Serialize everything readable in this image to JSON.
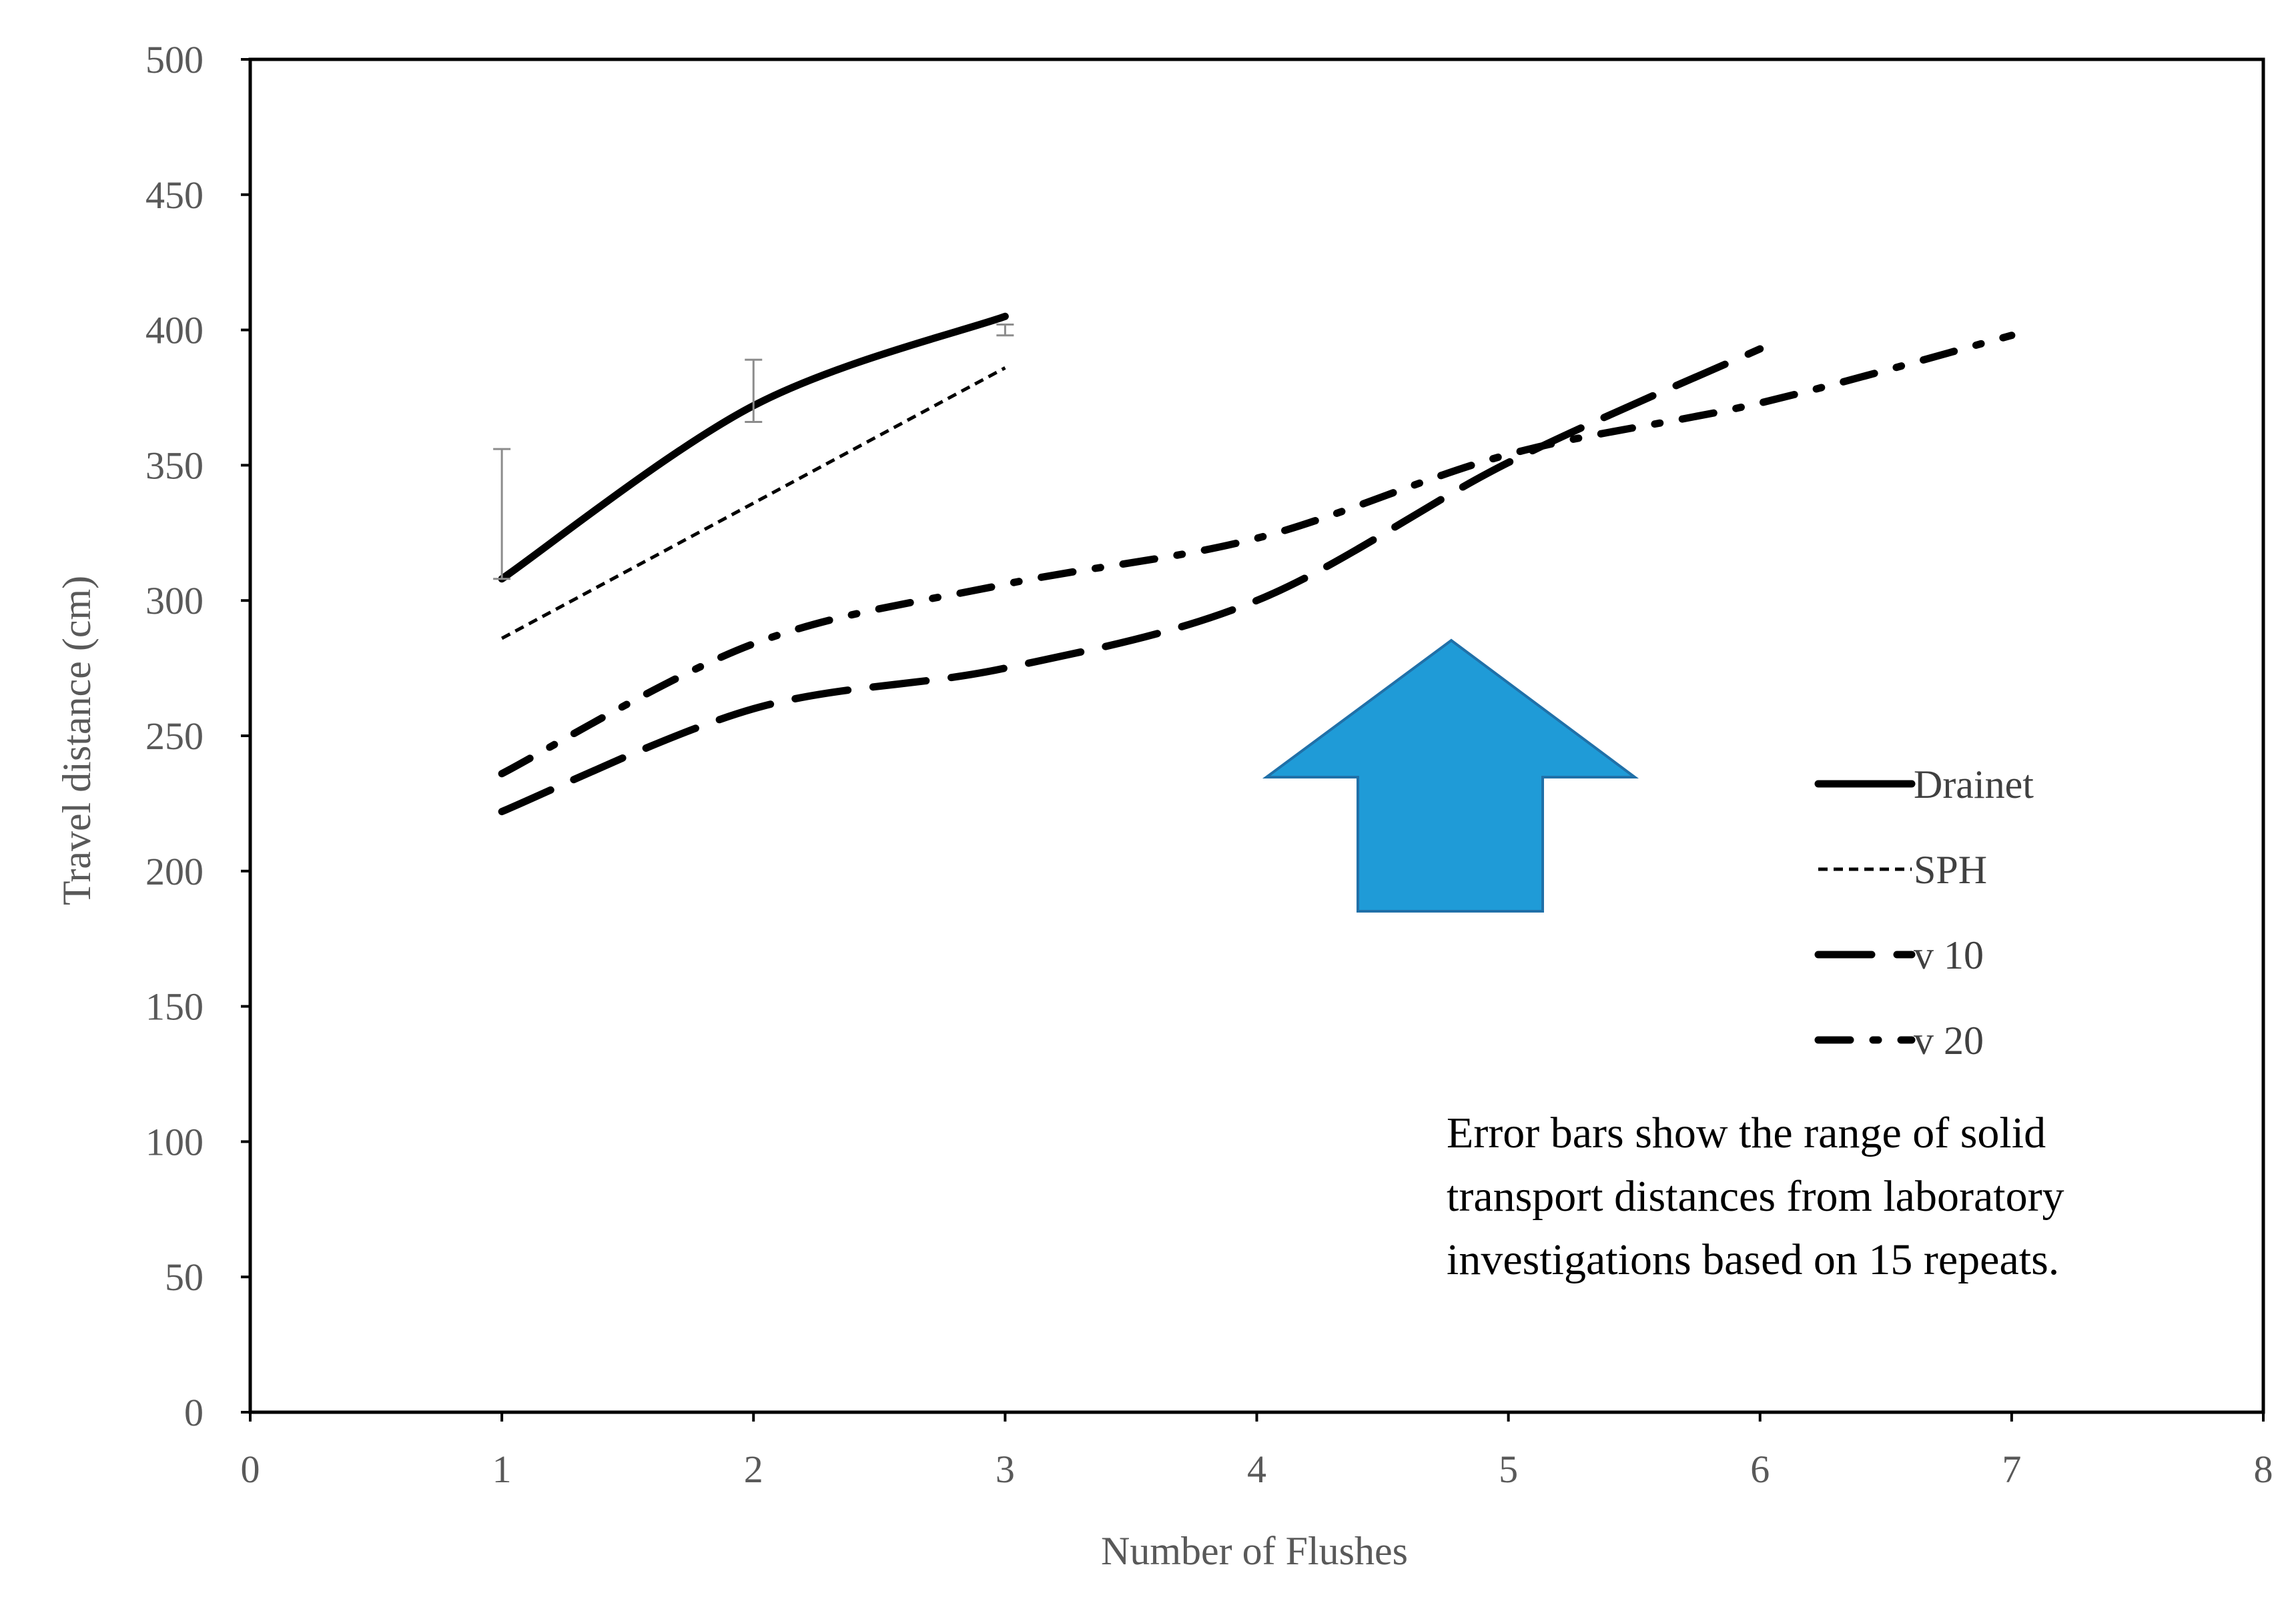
{
  "chart_data": {
    "type": "line",
    "title": "",
    "xlabel": "Number of Flushes",
    "ylabel": "Travel distance (cm)",
    "xlim": [
      0,
      8
    ],
    "ylim": [
      0,
      500
    ],
    "x_ticks": [
      "0",
      "1",
      "2",
      "3",
      "4",
      "5",
      "6",
      "7",
      "8"
    ],
    "y_ticks": [
      "0",
      "50",
      "100",
      "150",
      "200",
      "250",
      "300",
      "350",
      "400",
      "450",
      "500"
    ],
    "grid": false,
    "legend_position": "right",
    "series": [
      {
        "name": "Drainet",
        "style": "solid",
        "x": [
          1,
          2,
          3
        ],
        "y": [
          308,
          372,
          405
        ],
        "error_bars": [
          {
            "x": 1,
            "low": 308,
            "high": 356
          },
          {
            "x": 2,
            "low": 366,
            "high": 389
          },
          {
            "x": 3,
            "low": 398,
            "high": 402
          }
        ]
      },
      {
        "name": "SPH",
        "style": "dotted",
        "x": [
          1,
          2,
          3
        ],
        "y": [
          286,
          336,
          386
        ]
      },
      {
        "name": "v 10",
        "style": "dashed",
        "x": [
          1,
          2,
          3,
          4,
          5,
          6
        ],
        "y": [
          222,
          260,
          275,
          300,
          351,
          393
        ]
      },
      {
        "name": "v 20",
        "style": "dash-dot",
        "x": [
          1,
          2,
          3,
          4,
          5,
          6,
          7
        ],
        "y": [
          236,
          284,
          306,
          323,
          354,
          373,
          398
        ]
      }
    ],
    "annotation": {
      "lines": [
        "Error bars show the range of solid",
        "transport distances  from laboratory",
        "investigations based on 15 repeats."
      ]
    },
    "arrow": {
      "direction": "up",
      "color": "#1f9bd7",
      "stroke": "#2070a8"
    }
  }
}
